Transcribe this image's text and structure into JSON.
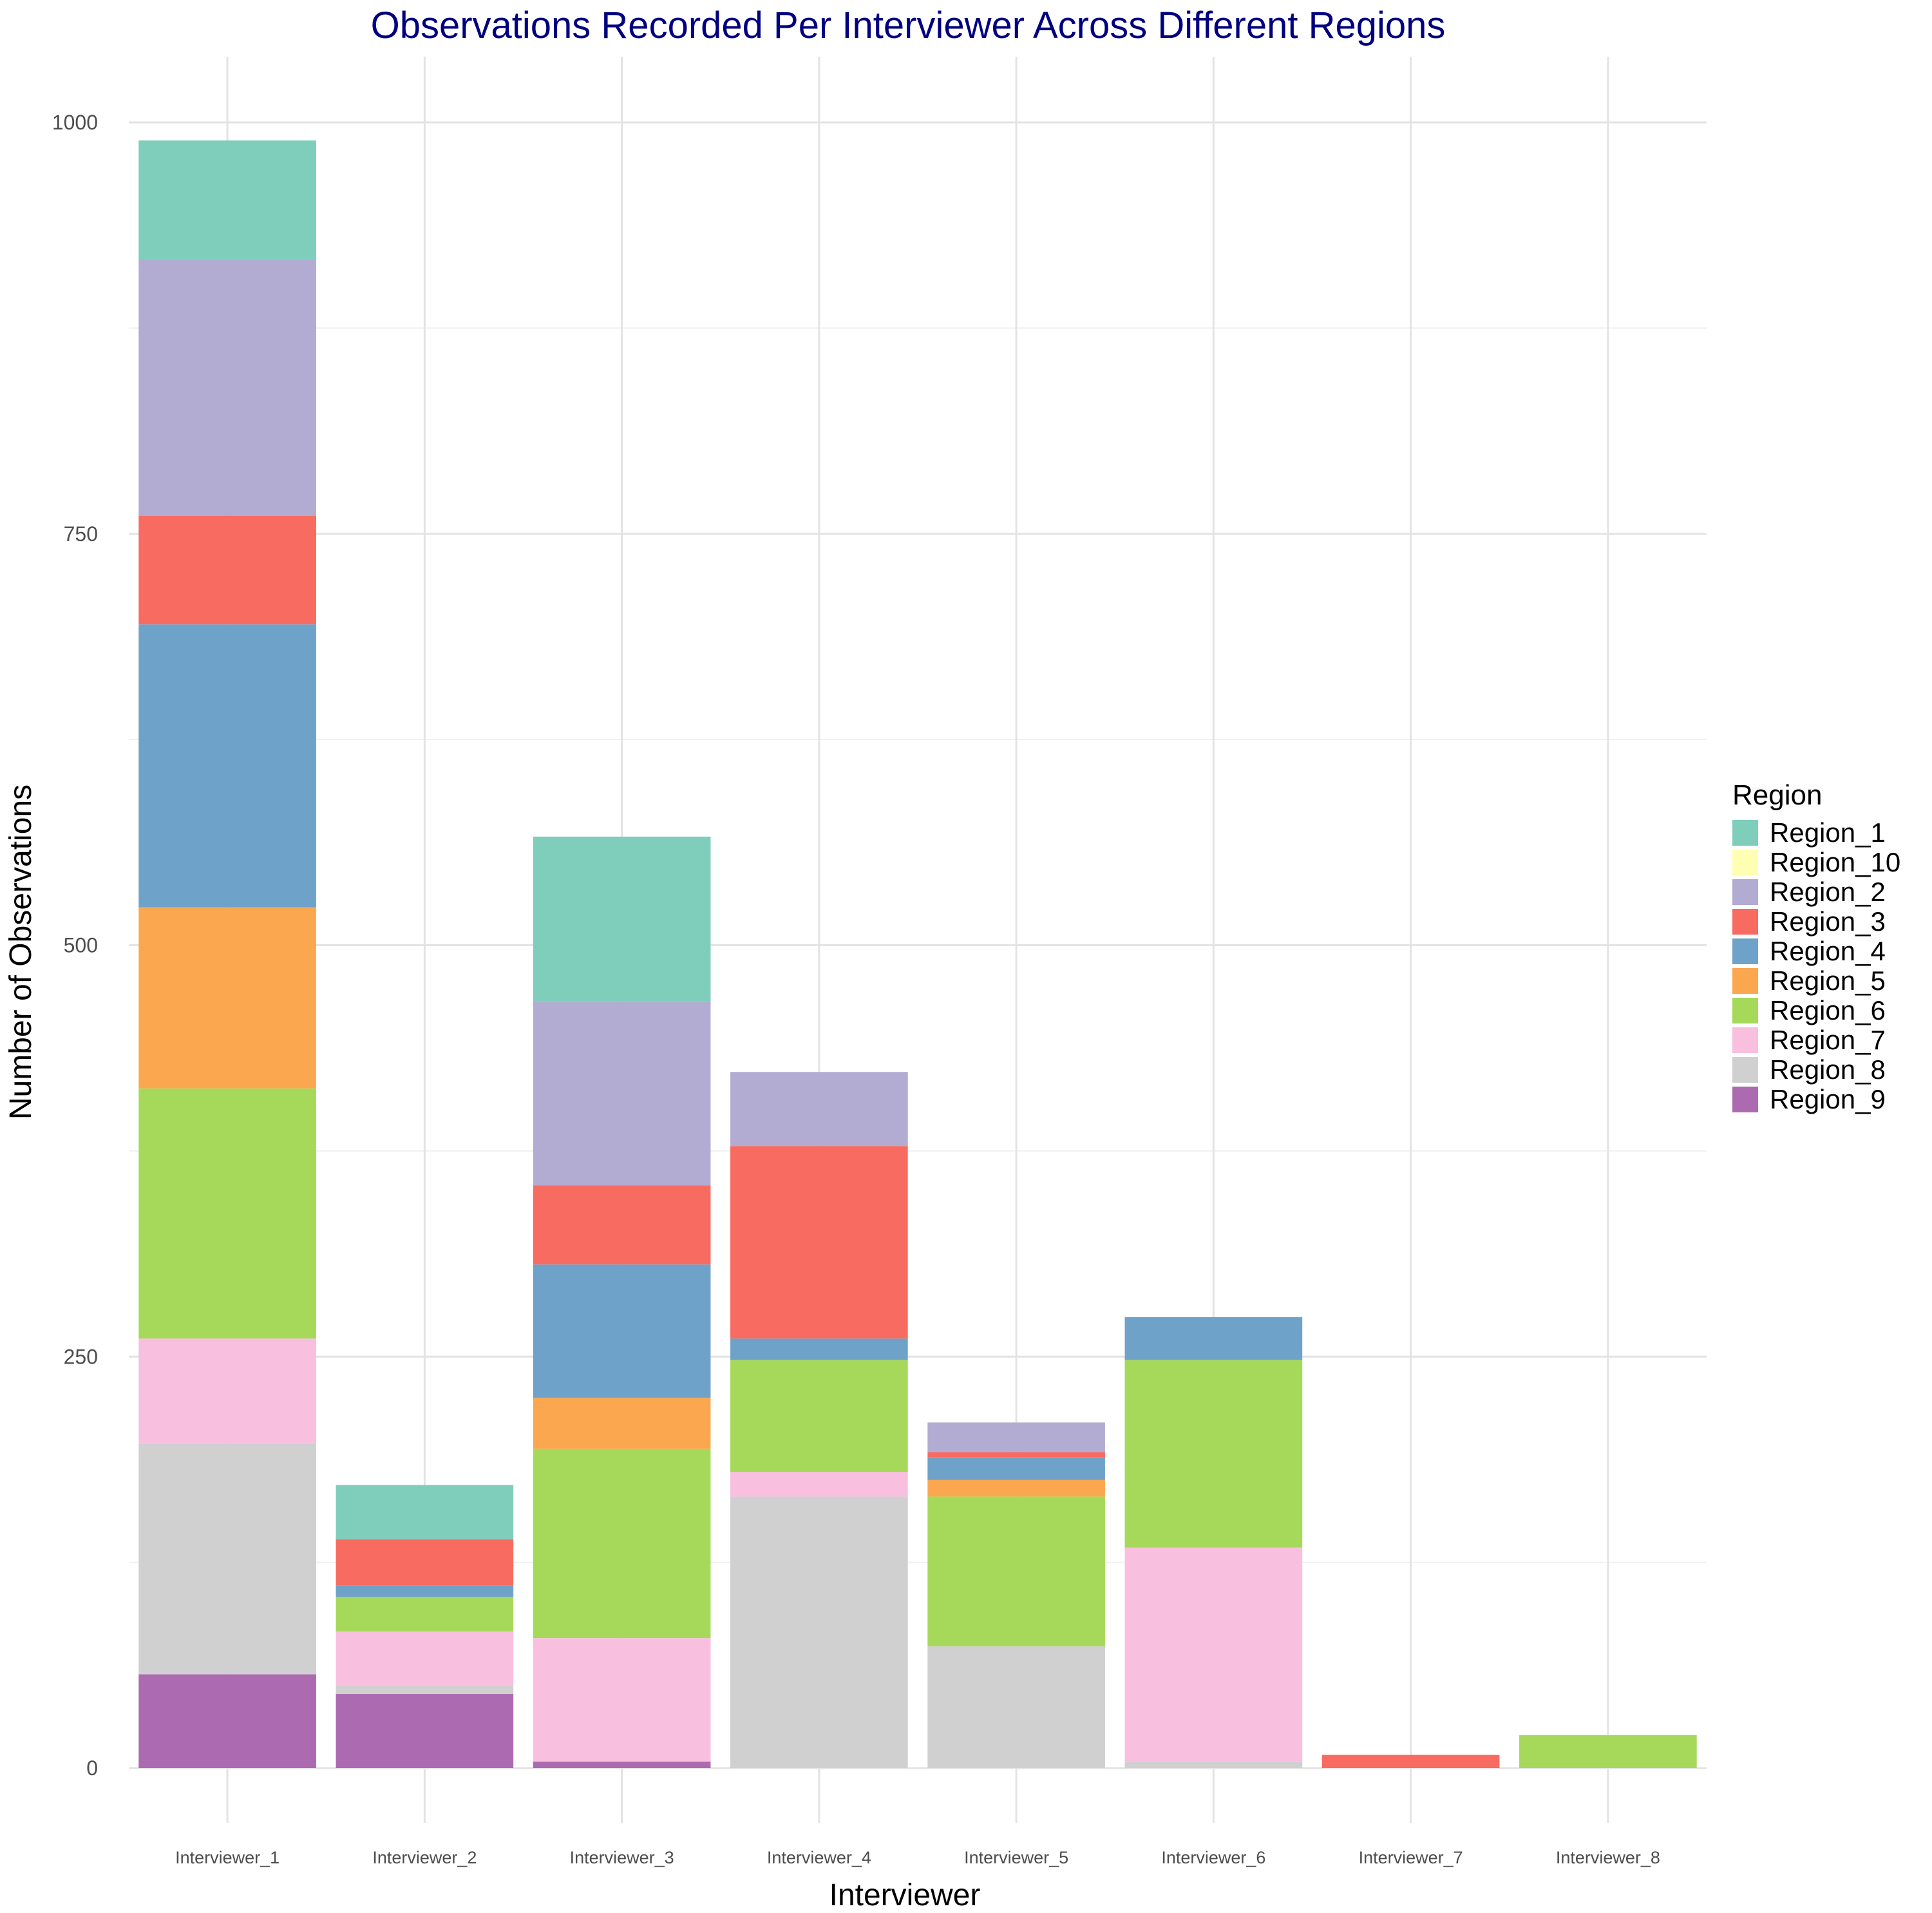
{
  "chart_data": {
    "type": "bar",
    "stacked": true,
    "title": "Observations Recorded Per Interviewer Across Different Regions",
    "xlabel": "Interviewer",
    "ylabel": "Number of Observations",
    "ylim": [
      -50,
      1040
    ],
    "yticks": [
      0,
      250,
      500,
      750,
      1000
    ],
    "grid": true,
    "legend": {
      "title": "Region",
      "position": "right"
    },
    "categories": [
      "Interviewer_1",
      "Interviewer_2",
      "Interviewer_3",
      "Interviewer_4",
      "Interviewer_5",
      "Interviewer_6",
      "Interviewer_7",
      "Interviewer_8"
    ],
    "stack_order": [
      "Region_9",
      "Region_8",
      "Region_7",
      "Region_6",
      "Region_5",
      "Region_4",
      "Region_3",
      "Region_2",
      "Region_10",
      "Region_1"
    ],
    "series": [
      {
        "name": "Region_1",
        "color": "#7fcdbb",
        "values": [
          72,
          33,
          100,
          0,
          0,
          0,
          0,
          0
        ]
      },
      {
        "name": "Region_10",
        "color": "#ffffb3",
        "values": [
          0,
          0,
          0,
          0,
          0,
          0,
          0,
          0
        ]
      },
      {
        "name": "Region_2",
        "color": "#b2abd2",
        "values": [
          156,
          0,
          112,
          45,
          18,
          0,
          0,
          0
        ]
      },
      {
        "name": "Region_3",
        "color": "#f76b61",
        "values": [
          66,
          28,
          48,
          117,
          3,
          0,
          8,
          0
        ]
      },
      {
        "name": "Region_4",
        "color": "#6fa2c8",
        "values": [
          172,
          7,
          81,
          13,
          14,
          26,
          0,
          0
        ]
      },
      {
        "name": "Region_5",
        "color": "#fba750",
        "values": [
          110,
          0,
          31,
          0,
          10,
          0,
          0,
          0
        ]
      },
      {
        "name": "Region_6",
        "color": "#a6d95a",
        "values": [
          152,
          21,
          115,
          68,
          91,
          114,
          0,
          20
        ]
      },
      {
        "name": "Region_7",
        "color": "#f8bfdf",
        "values": [
          64,
          33,
          75,
          15,
          0,
          130,
          0,
          0
        ]
      },
      {
        "name": "Region_8",
        "color": "#d0d0d0",
        "values": [
          140,
          5,
          0,
          165,
          74,
          4,
          0,
          0
        ]
      },
      {
        "name": "Region_9",
        "color": "#ac6ab0",
        "values": [
          57,
          45,
          4,
          0,
          0,
          0,
          0,
          0
        ]
      }
    ]
  }
}
